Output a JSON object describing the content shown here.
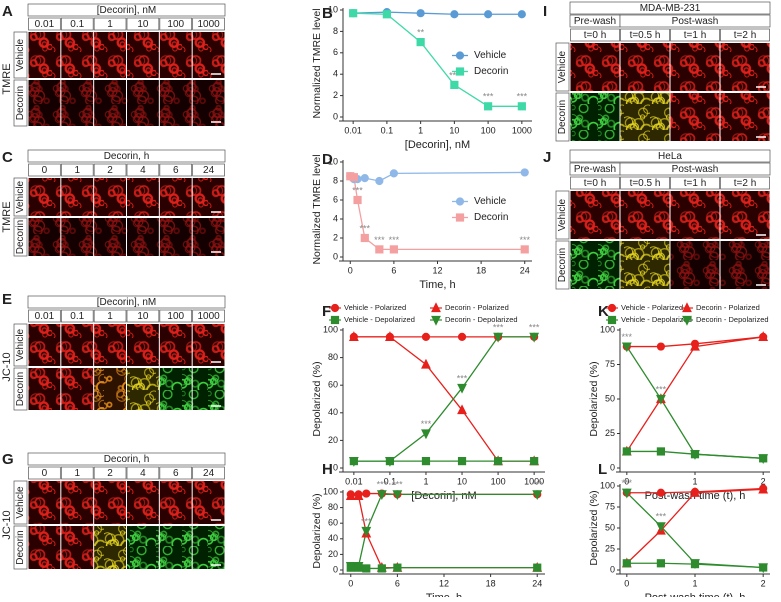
{
  "image_panels": [
    {
      "panel_label": "A",
      "header": "[Decorin], nM",
      "columns": [
        "0.01",
        "0.1",
        "1",
        "10",
        "100",
        "1000"
      ],
      "rows": [
        "Vehicle",
        "Decorin"
      ],
      "stain": "TMRE"
    },
    {
      "panel_label": "C",
      "header": "Decorin, h",
      "columns": [
        "0",
        "1",
        "2",
        "4",
        "6",
        "24"
      ],
      "rows": [
        "Vehicle",
        "Decorin"
      ],
      "stain": "TMRE"
    },
    {
      "panel_label": "E",
      "header": "[Decorin], nM",
      "columns": [
        "0.01",
        "0.1",
        "1",
        "10",
        "100",
        "1000"
      ],
      "rows": [
        "Vehicle",
        "Decorin"
      ],
      "stain": "JC-10"
    },
    {
      "panel_label": "G",
      "header": "Decorin, h",
      "columns": [
        "0",
        "1",
        "2",
        "4",
        "6",
        "24"
      ],
      "rows": [
        "Vehicle",
        "Decorin"
      ],
      "stain": "JC-10"
    },
    {
      "panel_label": "I",
      "header": "MDA-MB-231",
      "groups": [
        "Pre-wash",
        "Post-wash"
      ],
      "columns": [
        "t=0 h",
        "t=0.5 h",
        "t=1 h",
        "t=2 h"
      ],
      "rows": [
        "Vehicle",
        "Decorin"
      ]
    },
    {
      "panel_label": "J",
      "header": "HeLa",
      "groups": [
        "Pre-wash",
        "Post-wash"
      ],
      "columns": [
        "t=0 h",
        "t=0.5 h",
        "t=1 h",
        "t=2 h"
      ],
      "rows": [
        "Vehicle",
        "Decorin"
      ]
    }
  ],
  "chart_data": [
    {
      "type": "line",
      "panel_label": "B",
      "xlabel": "[Decorin], nM",
      "ylabel": "Normalized TMRE level",
      "xscale": "log",
      "x": [
        0.01,
        0.1,
        1,
        10,
        100,
        1000
      ],
      "xlim": [
        0.005,
        2000
      ],
      "xticks": [
        0.01,
        0.1,
        1,
        10,
        100,
        1000
      ],
      "ylim": [
        0,
        10
      ],
      "yticks": [
        0,
        2,
        4,
        6,
        8,
        10
      ],
      "legend": "right",
      "series": [
        {
          "name": "Vehicle",
          "color": "#5b9bd5",
          "marker": "circle",
          "values": [
            9.7,
            9.8,
            9.7,
            9.6,
            9.6,
            9.6
          ]
        },
        {
          "name": "Decorin",
          "color": "#3fd9a8",
          "marker": "square",
          "values": [
            9.7,
            9.6,
            7.0,
            3.0,
            1.0,
            1.0
          ],
          "annotations": [
            null,
            null,
            "**",
            "***",
            "***",
            "***"
          ]
        }
      ]
    },
    {
      "type": "line",
      "panel_label": "D",
      "xlabel": "Time, h",
      "ylabel": "Normalized TMRE level",
      "xscale": "linear",
      "x": [
        0,
        0.5,
        1,
        2,
        4,
        6,
        24
      ],
      "xlim": [
        -1,
        25
      ],
      "xticks": [
        0,
        6,
        12,
        18,
        24
      ],
      "ylim": [
        0,
        10
      ],
      "yticks": [
        0,
        2,
        4,
        6,
        8,
        10
      ],
      "legend": "right",
      "series": [
        {
          "name": "Vehicle",
          "color": "#8fb8e8",
          "marker": "circle",
          "values": [
            8.5,
            8.2,
            8.2,
            8.3,
            8.0,
            8.8,
            8.9
          ]
        },
        {
          "name": "Decorin",
          "color": "#f4a0a0",
          "marker": "square",
          "values": [
            8.5,
            8.4,
            6.0,
            2.0,
            0.8,
            0.8,
            0.8
          ],
          "annotations": [
            null,
            null,
            "***",
            "***",
            "***",
            "***",
            "***"
          ]
        }
      ]
    },
    {
      "type": "line",
      "panel_label": "F",
      "xlabel": "[Decorin], nM",
      "ylabel": "Depolarized (%)",
      "xscale": "log",
      "x": [
        0.01,
        0.1,
        1,
        10,
        100,
        1000
      ],
      "xlim": [
        0.005,
        2000
      ],
      "xticks": [
        0.01,
        0.1,
        1,
        10,
        100,
        1000
      ],
      "ylim": [
        0,
        100
      ],
      "yticks": [
        0,
        20,
        40,
        60,
        80,
        100
      ],
      "legend": "top",
      "series": [
        {
          "name": "Vehicle - Polarized",
          "color": "#e8201c",
          "marker": "circle",
          "values": [
            95,
            95,
            95,
            95,
            95,
            95
          ]
        },
        {
          "name": "Decorin - Polarized",
          "color": "#e8201c",
          "marker": "triangle",
          "values": [
            95,
            95,
            75,
            42,
            5,
            5
          ]
        },
        {
          "name": "Vehicle - Depolarized",
          "color": "#2e8b2e",
          "marker": "square",
          "values": [
            5,
            5,
            5,
            5,
            5,
            5
          ]
        },
        {
          "name": "Decorin - Depolarized",
          "color": "#2e8b2e",
          "marker": "triangle-down",
          "values": [
            5,
            5,
            25,
            58,
            95,
            95
          ],
          "annotations": [
            null,
            null,
            "***",
            "***",
            "***",
            "***"
          ]
        }
      ]
    },
    {
      "type": "line",
      "panel_label": "H",
      "xlabel": "Time, h",
      "ylabel": "Depolarized (%)",
      "xscale": "linear",
      "x": [
        0,
        1,
        2,
        4,
        6,
        24
      ],
      "xlim": [
        -1,
        25
      ],
      "xticks": [
        0,
        6,
        12,
        18,
        24
      ],
      "ylim": [
        0,
        100
      ],
      "yticks": [
        0,
        20,
        40,
        60,
        80,
        100
      ],
      "series": [
        {
          "name": "Vehicle - Polarized",
          "color": "#e8201c",
          "marker": "circle",
          "values": [
            97,
            97,
            98,
            98,
            97,
            97
          ]
        },
        {
          "name": "Decorin - Polarized",
          "color": "#e8201c",
          "marker": "triangle",
          "values": [
            95,
            95,
            47,
            3,
            3,
            3
          ]
        },
        {
          "name": "Vehicle - Depolarized",
          "color": "#2e8b2e",
          "marker": "square",
          "values": [
            3,
            3,
            2,
            2,
            3,
            3
          ]
        },
        {
          "name": "Decorin - Depolarized",
          "color": "#2e8b2e",
          "marker": "triangle-down",
          "values": [
            5,
            5,
            50,
            97,
            97,
            97
          ],
          "annotations": [
            null,
            null,
            "***",
            "***",
            "***",
            "***"
          ]
        }
      ]
    },
    {
      "type": "line",
      "panel_label": "K",
      "xlabel": "Post-wash time (t), h",
      "ylabel": "Depolarized (%)",
      "xscale": "linear",
      "x": [
        0,
        0.5,
        1,
        2
      ],
      "xlim": [
        -0.1,
        2.1
      ],
      "xticks": [
        0,
        1,
        2
      ],
      "ylim": [
        0,
        100
      ],
      "yticks": [
        0,
        25,
        50,
        75,
        100
      ],
      "legend": "top",
      "series": [
        {
          "name": "Vehicle - Polarized",
          "color": "#e8201c",
          "marker": "circle",
          "values": [
            88,
            88,
            90,
            95
          ]
        },
        {
          "name": "Decorin - Polarized",
          "color": "#e8201c",
          "marker": "triangle",
          "values": [
            12,
            50,
            88,
            95
          ]
        },
        {
          "name": "Vehicle - Depolarized",
          "color": "#2e8b2e",
          "marker": "square",
          "values": [
            12,
            12,
            10,
            7
          ]
        },
        {
          "name": "Decorin - Depolarized",
          "color": "#2e8b2e",
          "marker": "triangle-down",
          "values": [
            88,
            50,
            10,
            7
          ],
          "annotations": [
            "***",
            "***",
            null,
            null
          ]
        }
      ]
    },
    {
      "type": "line",
      "panel_label": "L",
      "xlabel": "Post-wash time (t), h",
      "ylabel": "Depolarized (%)",
      "xscale": "linear",
      "x": [
        0,
        0.5,
        1,
        2
      ],
      "xlim": [
        -0.1,
        2.1
      ],
      "xticks": [
        0,
        1,
        2
      ],
      "ylim": [
        0,
        100
      ],
      "yticks": [
        0,
        25,
        50,
        75,
        100
      ],
      "series": [
        {
          "name": "Vehicle - Polarized",
          "color": "#e8201c",
          "marker": "circle",
          "values": [
            92,
            92,
            93,
            97
          ]
        },
        {
          "name": "Decorin - Polarized",
          "color": "#e8201c",
          "marker": "triangle",
          "values": [
            8,
            47,
            92,
            96
          ]
        },
        {
          "name": "Vehicle - Depolarized",
          "color": "#2e8b2e",
          "marker": "square",
          "values": [
            8,
            8,
            7,
            3
          ]
        },
        {
          "name": "Decorin - Depolarized",
          "color": "#2e8b2e",
          "marker": "triangle-down",
          "values": [
            92,
            52,
            8,
            3
          ],
          "annotations": [
            "***",
            "***",
            null,
            null
          ]
        }
      ]
    }
  ]
}
